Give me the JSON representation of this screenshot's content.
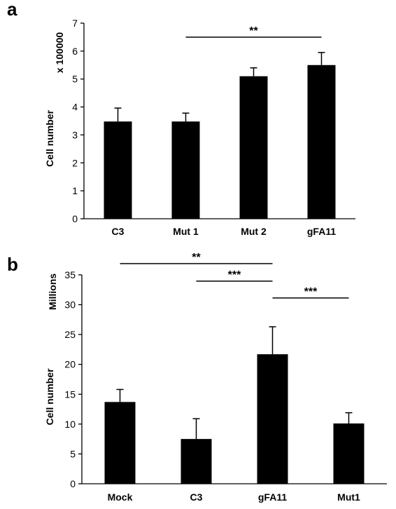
{
  "chart_data": [
    {
      "panel_label": "a",
      "type": "bar",
      "categories": [
        "C3",
        "Mut 1",
        "Mut 2",
        "gFA11"
      ],
      "values": [
        3.48,
        3.48,
        5.1,
        5.5
      ],
      "errors": [
        0.48,
        0.3,
        0.3,
        0.45
      ],
      "ylabel": "Cell number",
      "ylabel_scale": "x 100000",
      "ylim": [
        0,
        7
      ],
      "yticks": [
        "0",
        "1",
        "2",
        "3",
        "4",
        "5",
        "6",
        "7"
      ],
      "color": "#000000",
      "significance": [
        {
          "from": "Mut 1",
          "to": "gFA11",
          "label": "**"
        }
      ]
    },
    {
      "panel_label": "b",
      "type": "bar",
      "categories": [
        "Mock",
        "C3",
        "gFA11",
        "Mut1"
      ],
      "values": [
        13.7,
        7.5,
        21.7,
        10.1
      ],
      "errors": [
        2.1,
        3.4,
        4.6,
        1.8
      ],
      "ylabel": "Cell number",
      "ylabel_scale": "Millions",
      "ylim": [
        0,
        35
      ],
      "yticks": [
        "0",
        "5",
        "10",
        "15",
        "20",
        "25",
        "30",
        "35"
      ],
      "color": "#000000",
      "significance": [
        {
          "from": "Mock",
          "to": "gFA11",
          "label": "**"
        },
        {
          "from": "C3",
          "to": "gFA11",
          "label": "***"
        },
        {
          "from": "gFA11",
          "to": "Mut1",
          "label": "***"
        }
      ]
    }
  ]
}
